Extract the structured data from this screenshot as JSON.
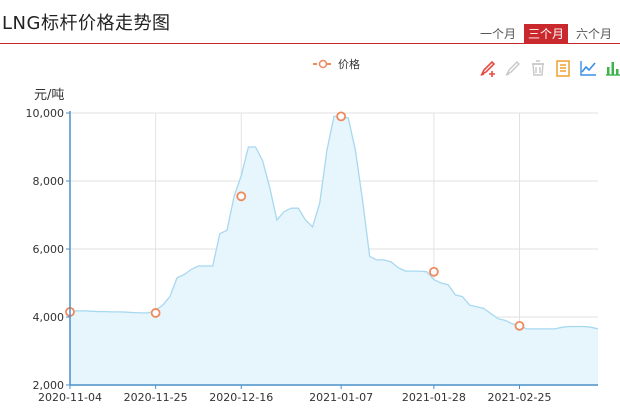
{
  "header": {
    "title": "LNG标杆价格走势图",
    "ranges": [
      {
        "label": "一个月",
        "active": false
      },
      {
        "label": "三个月",
        "active": true
      },
      {
        "label": "六个月",
        "active": false
      }
    ]
  },
  "toolbox": [
    {
      "icon": "mark-pen-icon"
    },
    {
      "icon": "mark-undo-icon"
    },
    {
      "icon": "mark-clear-icon"
    },
    {
      "icon": "data-view-icon"
    },
    {
      "icon": "line-chart-icon"
    },
    {
      "icon": "bar-chart-icon"
    }
  ],
  "chart_data": {
    "type": "area",
    "ylabel": "元/吨",
    "ylim": [
      2000,
      10000
    ],
    "yticks": [
      "2,000",
      "4,000",
      "6,000",
      "8,000",
      "10,000"
    ],
    "x_tick_labels": [
      "2020-11-04",
      "2020-11-25",
      "2020-12-16",
      "2021-01-07",
      "2021-01-28",
      "2021-02-25"
    ],
    "grid": true,
    "legend_position": "top-center",
    "series": [
      {
        "name": "价格",
        "color": "#f08a5d",
        "area_color": "#e6f6fc",
        "line_color": "#a8d8ef",
        "markers": [
          {
            "x": "2020-11-04",
            "y": 4150
          },
          {
            "x": "2020-11-25",
            "y": 4120
          },
          {
            "x": "2020-12-16",
            "y": 7550
          },
          {
            "x": "2021-01-07",
            "y": 9900
          },
          {
            "x": "2021-01-28",
            "y": 5330
          },
          {
            "x": "2021-02-25",
            "y": 3740
          }
        ],
        "values": [
          4150,
          4180,
          4180,
          4170,
          4160,
          4160,
          4150,
          4150,
          4140,
          4130,
          4120,
          4120,
          4200,
          4350,
          4600,
          5150,
          5250,
          5400,
          5500,
          5500,
          5500,
          6450,
          6550,
          7550,
          8150,
          9000,
          9000,
          8600,
          7800,
          6850,
          7100,
          7200,
          7200,
          6850,
          6650,
          7350,
          8900,
          9900,
          9900,
          9850,
          8900,
          7450,
          5780,
          5680,
          5680,
          5620,
          5450,
          5350,
          5350,
          5350,
          5330,
          5100,
          5000,
          4950,
          4650,
          4600,
          4350,
          4300,
          4250,
          4100,
          3950,
          3900,
          3800,
          3740,
          3650,
          3650,
          3650,
          3650,
          3650,
          3700,
          3720,
          3720,
          3720,
          3700,
          3650
        ]
      }
    ]
  }
}
